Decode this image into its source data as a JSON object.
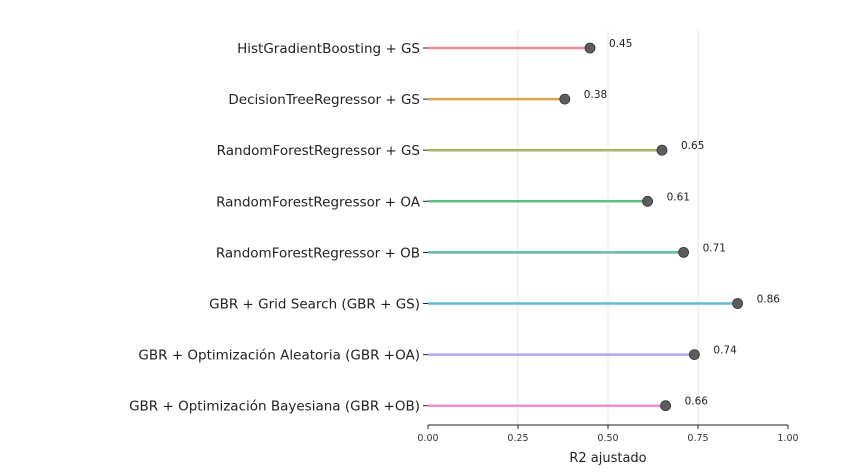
{
  "chart_data": {
    "type": "lollipop",
    "title": "",
    "xlabel": "R2 ajustado",
    "ylabel": "",
    "xlim": [
      0,
      1
    ],
    "xticks": [
      "0.00",
      "0.25",
      "0.50",
      "0.75",
      "1.00"
    ],
    "grid": "vertical",
    "categories": [
      "HistGradientBoosting + GS",
      "DecisionTreeRegressor + GS",
      "RandomForestRegressor + GS",
      "RandomForestRegressor + OA",
      "RandomForestRegressor + OB",
      "GBR + Grid Search (GBR + GS)",
      "GBR + Optimización Aleatoria (GBR +OA)",
      "GBR + Optimización Bayesiana (GBR +OB)"
    ],
    "values": [
      0.45,
      0.38,
      0.65,
      0.61,
      0.71,
      0.86,
      0.74,
      0.66
    ],
    "labels": [
      "0.45",
      "0.38",
      "0.65",
      "0.61",
      "0.71",
      "0.86",
      "0.74",
      "0.66"
    ],
    "colors": [
      "#ea8a9c",
      "#d8a650",
      "#a8b663",
      "#62bf80",
      "#5fbab2",
      "#64b9d2",
      "#b4a6ee",
      "#ee8cda"
    ],
    "marker_color": "#555555"
  }
}
